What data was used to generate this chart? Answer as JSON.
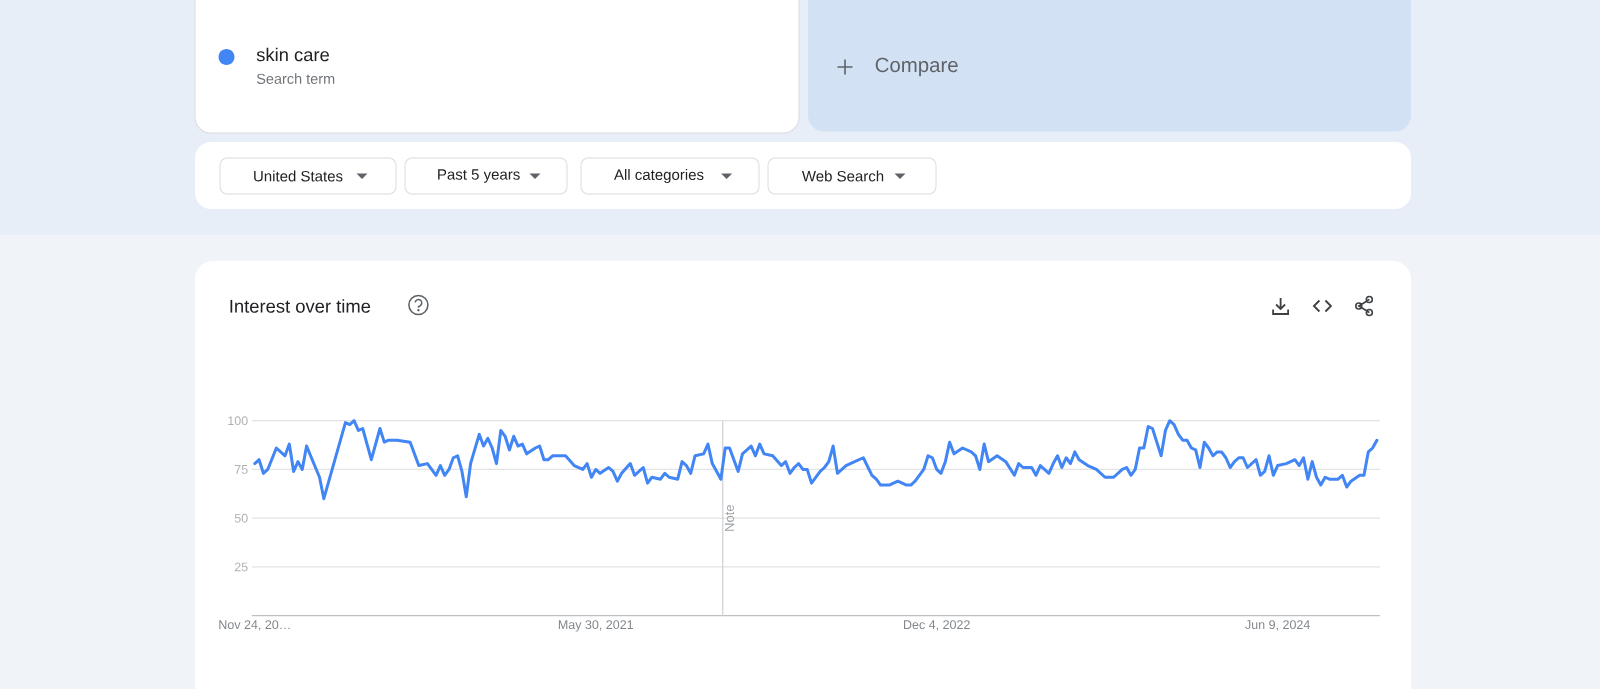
{
  "chart_data": {
    "type": "line",
    "title": "Interest over time",
    "x": [
      "2019-11-24",
      "2019-12-01",
      "2019-12-08",
      "2019-12-15",
      "2019-12-29",
      "2020-01-12",
      "2020-01-19",
      "2020-01-26",
      "2020-02-02",
      "2020-02-09",
      "2020-02-16",
      "2020-03-08",
      "2020-03-15",
      "2020-04-19",
      "2020-04-26",
      "2020-05-03",
      "2020-05-10",
      "2020-05-17",
      "2020-05-31",
      "2020-06-14",
      "2020-06-21",
      "2020-06-28",
      "2020-07-12",
      "2020-08-02",
      "2020-08-16",
      "2020-08-30",
      "2020-09-13",
      "2020-09-20",
      "2020-09-27",
      "2020-10-04",
      "2020-10-11",
      "2020-10-18",
      "2020-10-25",
      "2020-11-01",
      "2020-11-08",
      "2020-11-22",
      "2020-11-29",
      "2020-12-06",
      "2020-12-13",
      "2020-12-20",
      "2020-12-27",
      "2021-01-03",
      "2021-01-10",
      "2021-01-17",
      "2021-01-24",
      "2021-01-31",
      "2021-02-07",
      "2021-02-21",
      "2021-02-28",
      "2021-03-07",
      "2021-03-14",
      "2021-03-21",
      "2021-04-11",
      "2021-04-25",
      "2021-05-09",
      "2021-05-16",
      "2021-05-23",
      "2021-05-30",
      "2021-06-06",
      "2021-06-20",
      "2021-06-27",
      "2021-07-04",
      "2021-07-11",
      "2021-07-25",
      "2021-08-01",
      "2021-08-15",
      "2021-08-22",
      "2021-08-29",
      "2021-09-12",
      "2021-09-19",
      "2021-09-26",
      "2021-10-10",
      "2021-10-17",
      "2021-10-24",
      "2021-10-31",
      "2021-11-07",
      "2021-11-21",
      "2021-11-28",
      "2021-12-05",
      "2021-12-19",
      "2021-12-26",
      "2022-01-02",
      "2022-01-16",
      "2022-01-23",
      "2022-02-06",
      "2022-02-13",
      "2022-02-20",
      "2022-02-27",
      "2022-03-13",
      "2022-03-27",
      "2022-04-03",
      "2022-04-10",
      "2022-04-17",
      "2022-04-24",
      "2022-05-01",
      "2022-05-08",
      "2022-05-15",
      "2022-05-22",
      "2022-05-29",
      "2022-06-05",
      "2022-06-12",
      "2022-06-19",
      "2022-06-26",
      "2022-07-10",
      "2022-07-24",
      "2022-08-07",
      "2022-08-21",
      "2022-08-28",
      "2022-09-04",
      "2022-09-18",
      "2022-10-02",
      "2022-10-16",
      "2022-10-23",
      "2022-10-30",
      "2022-11-06",
      "2022-11-13",
      "2022-11-20",
      "2022-11-27",
      "2022-12-04",
      "2022-12-11",
      "2022-12-18",
      "2022-12-25",
      "2023-01-01",
      "2023-01-15",
      "2023-01-29",
      "2023-02-05",
      "2023-02-12",
      "2023-02-19",
      "2023-02-26",
      "2023-03-12",
      "2023-03-26",
      "2023-04-09",
      "2023-04-16",
      "2023-04-23",
      "2023-05-07",
      "2023-05-14",
      "2023-05-21",
      "2023-06-04",
      "2023-06-11",
      "2023-06-18",
      "2023-06-25",
      "2023-07-02",
      "2023-07-09",
      "2023-07-16",
      "2023-07-23",
      "2023-08-06",
      "2023-08-20",
      "2023-09-03",
      "2023-09-17",
      "2023-10-01",
      "2023-10-08",
      "2023-10-15",
      "2023-10-22",
      "2023-10-29",
      "2023-11-05",
      "2023-11-12",
      "2023-11-19",
      "2023-11-26",
      "2023-12-03",
      "2023-12-10",
      "2023-12-17",
      "2023-12-24",
      "2023-12-31",
      "2024-01-07",
      "2024-01-14",
      "2024-01-21",
      "2024-01-28",
      "2024-02-04",
      "2024-02-11",
      "2024-02-18",
      "2024-02-25",
      "2024-03-03",
      "2024-03-10",
      "2024-03-17",
      "2024-03-24",
      "2024-03-31",
      "2024-04-07",
      "2024-04-14",
      "2024-04-21",
      "2024-05-05",
      "2024-05-12",
      "2024-05-19",
      "2024-05-26",
      "2024-06-02",
      "2024-06-09",
      "2024-06-23",
      "2024-07-07",
      "2024-07-14",
      "2024-07-21",
      "2024-07-28",
      "2024-08-04",
      "2024-08-11",
      "2024-08-18",
      "2024-08-25",
      "2024-09-01",
      "2024-09-15",
      "2024-09-22",
      "2024-09-29",
      "2024-10-06",
      "2024-10-20",
      "2024-10-27",
      "2024-11-03",
      "2024-11-10",
      "2024-11-17"
    ],
    "series": [
      {
        "name": "skin care",
        "color": "#4285f4",
        "values": [
          78,
          80,
          73,
          75,
          86,
          82,
          88,
          74,
          79,
          75,
          87,
          71,
          60,
          99,
          98,
          100,
          95,
          96,
          80,
          96,
          89,
          90,
          90,
          89,
          77,
          78,
          72,
          77,
          72,
          75,
          81,
          82,
          74,
          61,
          78,
          93,
          87,
          91,
          86,
          78,
          95,
          92,
          85,
          92,
          87,
          88,
          83,
          86,
          87,
          80,
          80,
          82,
          82,
          77,
          75,
          78,
          71,
          75,
          73,
          76,
          74,
          69,
          73,
          78,
          72,
          76,
          68,
          71,
          70,
          73,
          71,
          70,
          79,
          77,
          73,
          82,
          83,
          88,
          78,
          70,
          86,
          86,
          74,
          83,
          87,
          82,
          88,
          83,
          82,
          77,
          79,
          73,
          76,
          78,
          75,
          75,
          68,
          71,
          74,
          76,
          79,
          87,
          73,
          77,
          79,
          81,
          72,
          70,
          67,
          67,
          69,
          67,
          67,
          69,
          72,
          75,
          82,
          81,
          75,
          73,
          79,
          89,
          83,
          86,
          84,
          82,
          75,
          88,
          79,
          82,
          79,
          72,
          78,
          76,
          76,
          72,
          77,
          73,
          78,
          82,
          76,
          81,
          78,
          84,
          80,
          77,
          75,
          71,
          71,
          75,
          76,
          72,
          75,
          86,
          86,
          97,
          96,
          89,
          82,
          95,
          100,
          98,
          93,
          90,
          90,
          86,
          85,
          76,
          89,
          86,
          82,
          84,
          84,
          81,
          76,
          79,
          81,
          81,
          76,
          80,
          72,
          74,
          82,
          72,
          77,
          78,
          80,
          77,
          81,
          70,
          79,
          71,
          67,
          71,
          70,
          70,
          72,
          66,
          69,
          72,
          72,
          84,
          86,
          90
        ]
      }
    ],
    "xlim": [
      "2019-11-19",
      "2024-11-22"
    ],
    "xticks": [
      {
        "value": "2019-11-24",
        "label": "Nov 24, 20…"
      },
      {
        "value": "2021-05-30",
        "label": "May 30, 2021"
      },
      {
        "value": "2022-12-04",
        "label": "Dec 4, 2022"
      },
      {
        "value": "2024-06-09",
        "label": "Jun 9, 2024"
      }
    ],
    "ylim": [
      0,
      100
    ],
    "yticks": [
      25,
      50,
      75,
      100
    ],
    "grid": "y",
    "legend": "top left",
    "ref_lines": [
      {
        "axis": "x",
        "value": "2021-12-22",
        "label": "Note",
        "color": "#d0d0d0"
      }
    ],
    "annotations": [
      "Search term",
      "Compare",
      "United States",
      "Past 5 years",
      "All categories",
      "Web Search"
    ]
  }
}
